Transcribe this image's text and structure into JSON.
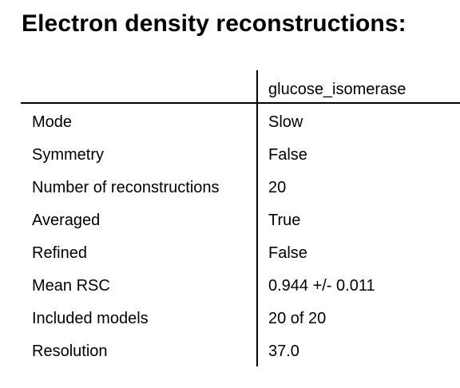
{
  "title": "Electron density reconstructions:",
  "table": {
    "column_header": "glucose_isomerase",
    "rows": [
      {
        "label": "Mode",
        "value": "Slow"
      },
      {
        "label": "Symmetry",
        "value": "False"
      },
      {
        "label": "Number of reconstructions",
        "value": "20"
      },
      {
        "label": "Averaged",
        "value": "True"
      },
      {
        "label": "Refined",
        "value": "False"
      },
      {
        "label": "Mean RSC",
        "value": "0.944 +/- 0.011"
      },
      {
        "label": "Included models",
        "value": "20 of 20"
      },
      {
        "label": "Resolution",
        "value": "37.0"
      }
    ]
  }
}
